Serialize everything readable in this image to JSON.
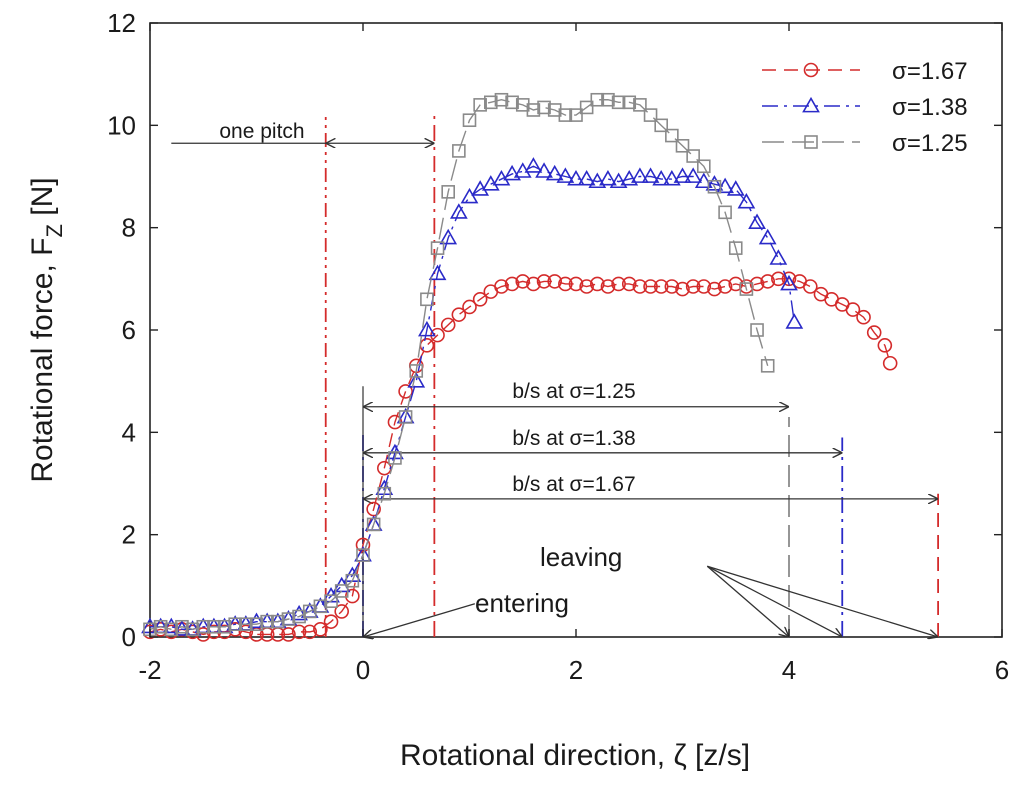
{
  "chart_data": {
    "type": "scatter",
    "title": "",
    "xlabel": "Rotational direction, ζ [z/s]",
    "ylabel": "Rotational force, F",
    "ylabel_subscript": "Z",
    "ylabel_unit": "[N]",
    "xlim": [
      -2,
      6
    ],
    "ylim": [
      0,
      12
    ],
    "x_ticks": [
      "-2",
      "0",
      "2",
      "4",
      "6"
    ],
    "y_ticks": [
      "0",
      "2",
      "4",
      "6",
      "8",
      "10",
      "12"
    ],
    "grid": false,
    "legend_position": "top-right",
    "series": [
      {
        "name": "σ=1.67",
        "color": "#d42b2b",
        "marker": "circle",
        "dash": "dashed",
        "x": [
          -2.0,
          -1.9,
          -1.8,
          -1.7,
          -1.6,
          -1.5,
          -1.4,
          -1.3,
          -1.2,
          -1.1,
          -1.0,
          -0.9,
          -0.8,
          -0.7,
          -0.6,
          -0.5,
          -0.4,
          -0.3,
          -0.2,
          -0.1,
          0.0,
          0.1,
          0.2,
          0.3,
          0.4,
          0.5,
          0.6,
          0.7,
          0.8,
          0.9,
          1.0,
          1.1,
          1.2,
          1.3,
          1.4,
          1.5,
          1.6,
          1.7,
          1.8,
          1.9,
          2.0,
          2.1,
          2.2,
          2.3,
          2.4,
          2.5,
          2.6,
          2.7,
          2.8,
          2.9,
          3.0,
          3.1,
          3.2,
          3.3,
          3.4,
          3.5,
          3.6,
          3.7,
          3.8,
          3.9,
          4.0,
          4.1,
          4.2,
          4.3,
          4.4,
          4.5,
          4.6,
          4.7,
          4.8,
          4.9,
          4.95
        ],
        "y": [
          0.1,
          0.15,
          0.1,
          0.15,
          0.1,
          0.05,
          0.1,
          0.1,
          0.15,
          0.1,
          0.05,
          0.05,
          0.05,
          0.05,
          0.1,
          0.1,
          0.15,
          0.3,
          0.5,
          0.8,
          1.8,
          2.5,
          3.3,
          4.2,
          4.8,
          5.3,
          5.7,
          5.9,
          6.1,
          6.3,
          6.45,
          6.6,
          6.75,
          6.85,
          6.9,
          6.95,
          6.9,
          6.95,
          6.95,
          6.9,
          6.9,
          6.85,
          6.9,
          6.85,
          6.9,
          6.9,
          6.85,
          6.85,
          6.85,
          6.85,
          6.8,
          6.85,
          6.85,
          6.8,
          6.85,
          6.9,
          6.85,
          6.9,
          6.95,
          7.0,
          7.0,
          6.95,
          6.85,
          6.7,
          6.6,
          6.5,
          6.4,
          6.25,
          5.95,
          5.7,
          5.35
        ]
      },
      {
        "name": "σ=1.38",
        "color": "#2a2ac8",
        "marker": "triangle",
        "dash": "dashdot",
        "x": [
          -2.0,
          -1.9,
          -1.8,
          -1.7,
          -1.6,
          -1.5,
          -1.4,
          -1.3,
          -1.2,
          -1.1,
          -1.0,
          -0.9,
          -0.8,
          -0.7,
          -0.6,
          -0.5,
          -0.4,
          -0.3,
          -0.2,
          -0.1,
          0.0,
          0.1,
          0.2,
          0.3,
          0.4,
          0.5,
          0.6,
          0.7,
          0.8,
          0.9,
          1.0,
          1.1,
          1.2,
          1.3,
          1.4,
          1.5,
          1.6,
          1.7,
          1.8,
          1.9,
          2.0,
          2.1,
          2.2,
          2.3,
          2.4,
          2.5,
          2.6,
          2.7,
          2.8,
          2.9,
          3.0,
          3.1,
          3.2,
          3.3,
          3.4,
          3.5,
          3.6,
          3.7,
          3.8,
          3.9,
          4.0,
          4.05
        ],
        "y": [
          0.2,
          0.2,
          0.2,
          0.15,
          0.15,
          0.2,
          0.2,
          0.2,
          0.25,
          0.25,
          0.3,
          0.3,
          0.3,
          0.35,
          0.45,
          0.5,
          0.6,
          0.8,
          1.0,
          1.2,
          1.6,
          2.2,
          2.9,
          3.6,
          4.3,
          5.0,
          6.0,
          7.1,
          7.8,
          8.3,
          8.6,
          8.75,
          8.85,
          8.95,
          9.05,
          9.1,
          9.2,
          9.1,
          9.05,
          9.0,
          8.95,
          8.95,
          8.9,
          8.95,
          8.9,
          8.95,
          9.0,
          9.0,
          8.95,
          8.95,
          9.0,
          9.0,
          8.9,
          8.85,
          8.8,
          8.75,
          8.5,
          8.1,
          7.8,
          7.4,
          6.9,
          6.15
        ]
      },
      {
        "name": "σ=1.25",
        "color": "#8a8a8a",
        "marker": "square",
        "dash": "longdash",
        "x": [
          -2.0,
          -1.9,
          -1.8,
          -1.7,
          -1.6,
          -1.5,
          -1.4,
          -1.3,
          -1.2,
          -1.1,
          -1.0,
          -0.9,
          -0.8,
          -0.7,
          -0.6,
          -0.5,
          -0.4,
          -0.3,
          -0.2,
          -0.1,
          0.0,
          0.1,
          0.2,
          0.3,
          0.4,
          0.5,
          0.6,
          0.7,
          0.8,
          0.9,
          1.0,
          1.1,
          1.2,
          1.3,
          1.4,
          1.5,
          1.6,
          1.7,
          1.8,
          1.9,
          2.0,
          2.1,
          2.2,
          2.3,
          2.4,
          2.5,
          2.6,
          2.7,
          2.8,
          2.9,
          3.0,
          3.1,
          3.2,
          3.3,
          3.4,
          3.5,
          3.6,
          3.7,
          3.8
        ],
        "y": [
          0.15,
          0.2,
          0.15,
          0.2,
          0.15,
          0.2,
          0.2,
          0.2,
          0.25,
          0.25,
          0.25,
          0.3,
          0.3,
          0.35,
          0.4,
          0.5,
          0.6,
          0.7,
          0.9,
          1.1,
          1.6,
          2.2,
          2.8,
          3.5,
          4.3,
          5.2,
          6.6,
          7.6,
          8.7,
          9.5,
          10.1,
          10.4,
          10.45,
          10.5,
          10.45,
          10.4,
          10.3,
          10.35,
          10.3,
          10.2,
          10.2,
          10.35,
          10.5,
          10.5,
          10.45,
          10.45,
          10.4,
          10.2,
          10.0,
          9.8,
          9.6,
          9.4,
          9.2,
          8.8,
          8.3,
          7.6,
          6.8,
          6.0,
          5.3
        ]
      }
    ],
    "reference_lines": [
      {
        "x": -0.35,
        "color": "#d42b2b",
        "style": "dashdotdot"
      },
      {
        "x": 0.67,
        "color": "#d42b2b",
        "style": "dashdot"
      },
      {
        "x": 0.0,
        "color": "#2a2ac8",
        "style": "dashdot",
        "y_top": 4.0
      },
      {
        "x": 4.0,
        "color": "#8a8a8a",
        "style": "longdash",
        "y_top": 4.3
      },
      {
        "x": 4.5,
        "color": "#2a2ac8",
        "style": "dashdot",
        "y_top": 3.9
      },
      {
        "x": 5.4,
        "color": "#d42b2b",
        "style": "dashed",
        "y_top": 2.8
      }
    ],
    "annotations": {
      "one_pitch": {
        "label": "one pitch",
        "x_from": -0.35,
        "x_to": 0.67,
        "y": 9.65,
        "x_line_start": -1.8
      },
      "spans": [
        {
          "label": "b/s at σ=1.25",
          "x_from": 0.0,
          "x_to": 4.0,
          "y": 4.5
        },
        {
          "label": "b/s at σ=1.38",
          "x_from": 0.0,
          "x_to": 4.5,
          "y": 3.6
        },
        {
          "label": "b/s at σ=1.67",
          "x_from": 0.0,
          "x_to": 5.4,
          "y": 2.7
        }
      ],
      "entering": {
        "label": "entering",
        "x": 1.05,
        "y": 0.65,
        "target_x": 0.0,
        "target_y": 0.0
      },
      "leaving": {
        "label": "leaving",
        "x": 2.2,
        "y": 1.5,
        "targets_x": [
          4.0,
          4.5,
          5.4
        ],
        "target_y": 0.0
      }
    }
  }
}
